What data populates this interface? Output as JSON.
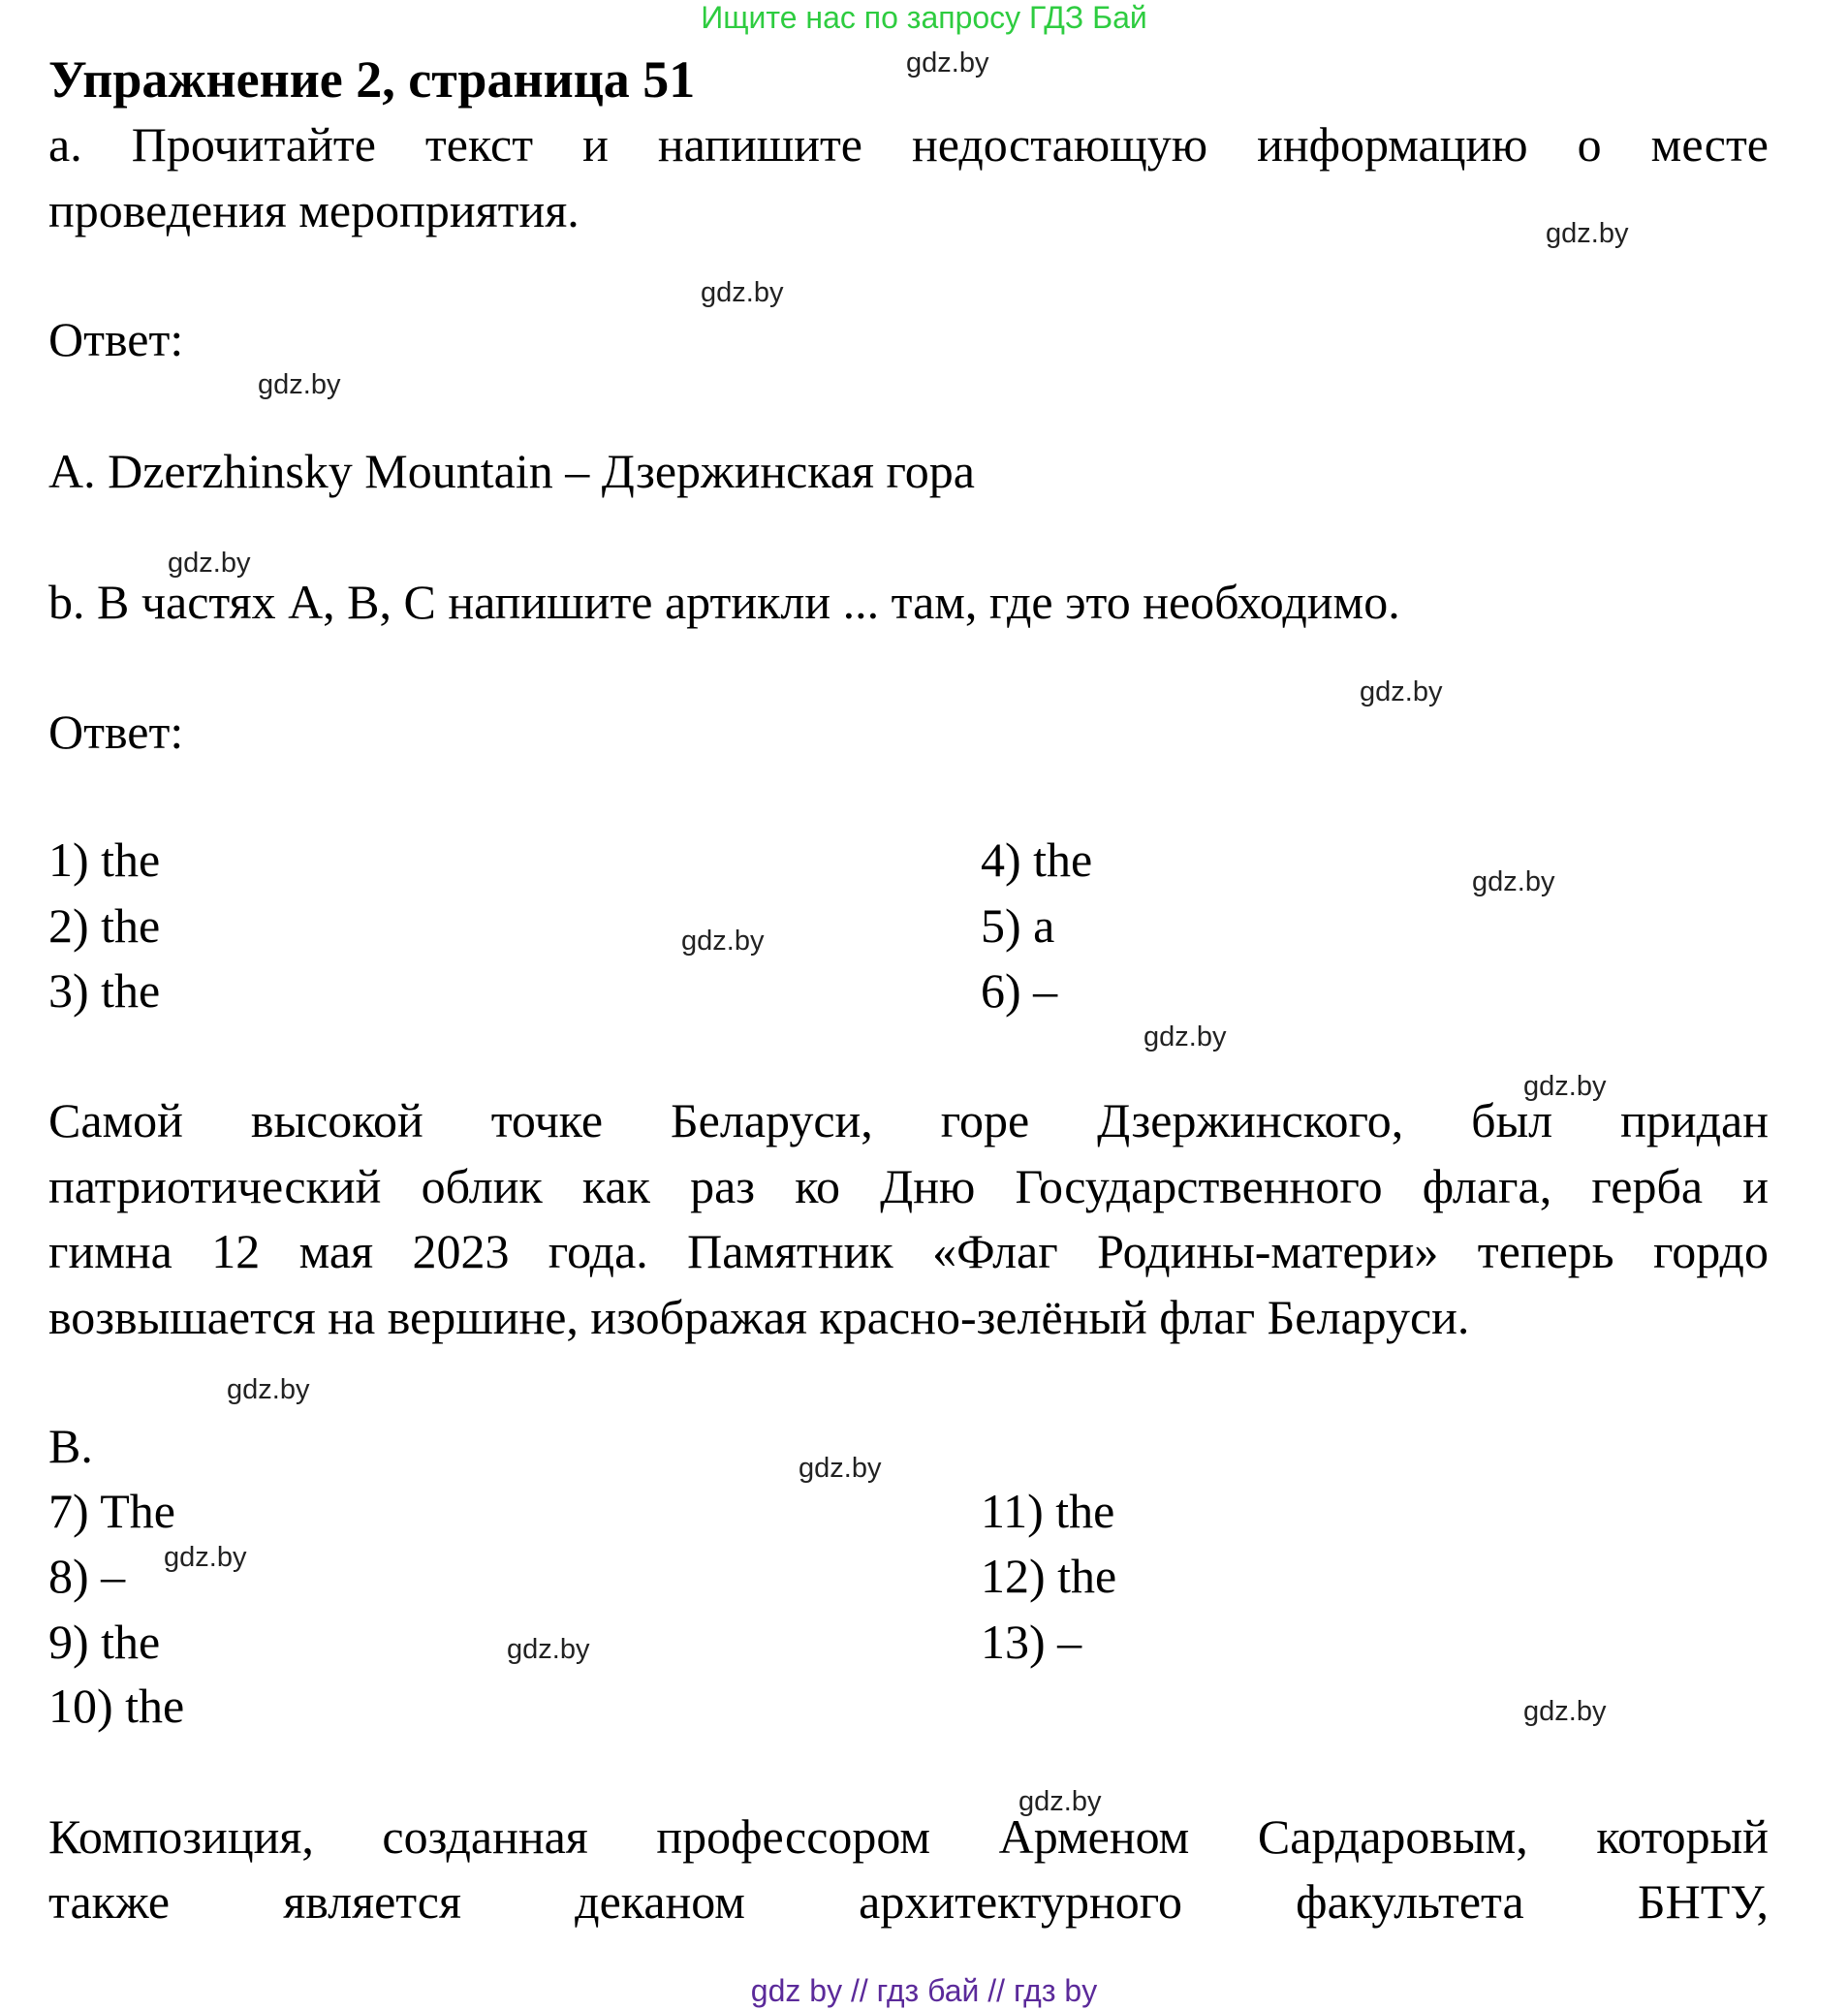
{
  "banner": "Ищите нас по запросу ГДЗ Бай",
  "title": "Упражнение 2, страница 51",
  "task_a": [
    "a. Прочитайте текст и напишите недостающую информацию о месте",
    "проведения мероприятия."
  ],
  "answer_label": "Ответ:",
  "answer_a": "A. Dzerzhinsky Mountain – Дзержинская гора",
  "task_b": "b. В частях A, B, C напишите артикли ... там, где это необходимо.",
  "part_a_answers": [
    "1) the",
    "2) the",
    "3) the",
    "4) the",
    "5) a",
    "6) –"
  ],
  "paragraph_a": [
    "Самой высокой точке Беларуси, горе Дзержинского, был придан",
    "патриотический облик как раз ко Дню Государственного флага, герба и",
    "гимна 12 мая 2023 года. Памятник «Флаг Родины-матери» теперь гордо",
    "возвышается на вершине, изображая красно-зелёный флаг Беларуси."
  ],
  "part_b_label": "B.",
  "part_b_answers": [
    "7) The",
    "8) –",
    "9) the",
    "10) the",
    "11) the",
    "12) the",
    "13) –"
  ],
  "paragraph_b": [
    "Композиция, созданная профессором Арменом Сардаровым, который",
    "также является деканом архитектурного факультета БНТУ,"
  ],
  "watermark": "gdz.by",
  "footer": "gdz by  //  гдз бай  //  гдз by",
  "colors": {
    "banner": "#2ecc40",
    "footer": "#5b2a9a"
  }
}
